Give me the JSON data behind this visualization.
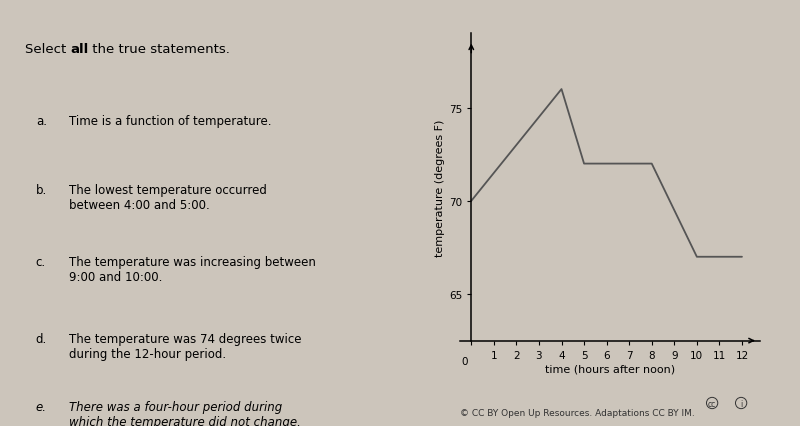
{
  "title_parts": [
    "Select ",
    "all",
    " the true statements."
  ],
  "statements": [
    {
      "label": "a.",
      "text": "Time is a function of temperature.",
      "style": "normal"
    },
    {
      "label": "b.",
      "text": "The lowest temperature occurred\nbetween 4:00 and 5:00.",
      "style": "normal"
    },
    {
      "label": "c.",
      "text": "The temperature was increasing between\n9:00 and 10:00.",
      "style": "normal"
    },
    {
      "label": "d.",
      "text": "The temperature was 74 degrees twice\nduring the 12-hour period.",
      "style": "normal"
    },
    {
      "label": "e.",
      "text": "There was a four-hour period during\nwhich the temperature did not change.",
      "style": "italic"
    }
  ],
  "graph": {
    "x": [
      0,
      4,
      5,
      8,
      10,
      11,
      12
    ],
    "y": [
      70,
      76,
      72,
      72,
      67,
      67,
      67
    ],
    "xlabel": "time (hours after noon)",
    "ylabel": "temperature (degrees F)",
    "yticks": [
      65,
      70,
      75
    ],
    "xticks": [
      0,
      1,
      2,
      3,
      4,
      5,
      6,
      7,
      8,
      9,
      10,
      11,
      12
    ],
    "xlim": [
      -0.5,
      12.8
    ],
    "ylim": [
      62.5,
      79
    ],
    "line_color": "#555555",
    "line_width": 1.3
  },
  "bg_color": "#ccc5bb",
  "copyright": "© CC BY Open Up Resources. Adaptations CC BY IM.",
  "fontsize_title": 9.5,
  "fontsize_statements": 8.5,
  "fontsize_label": 8.5
}
